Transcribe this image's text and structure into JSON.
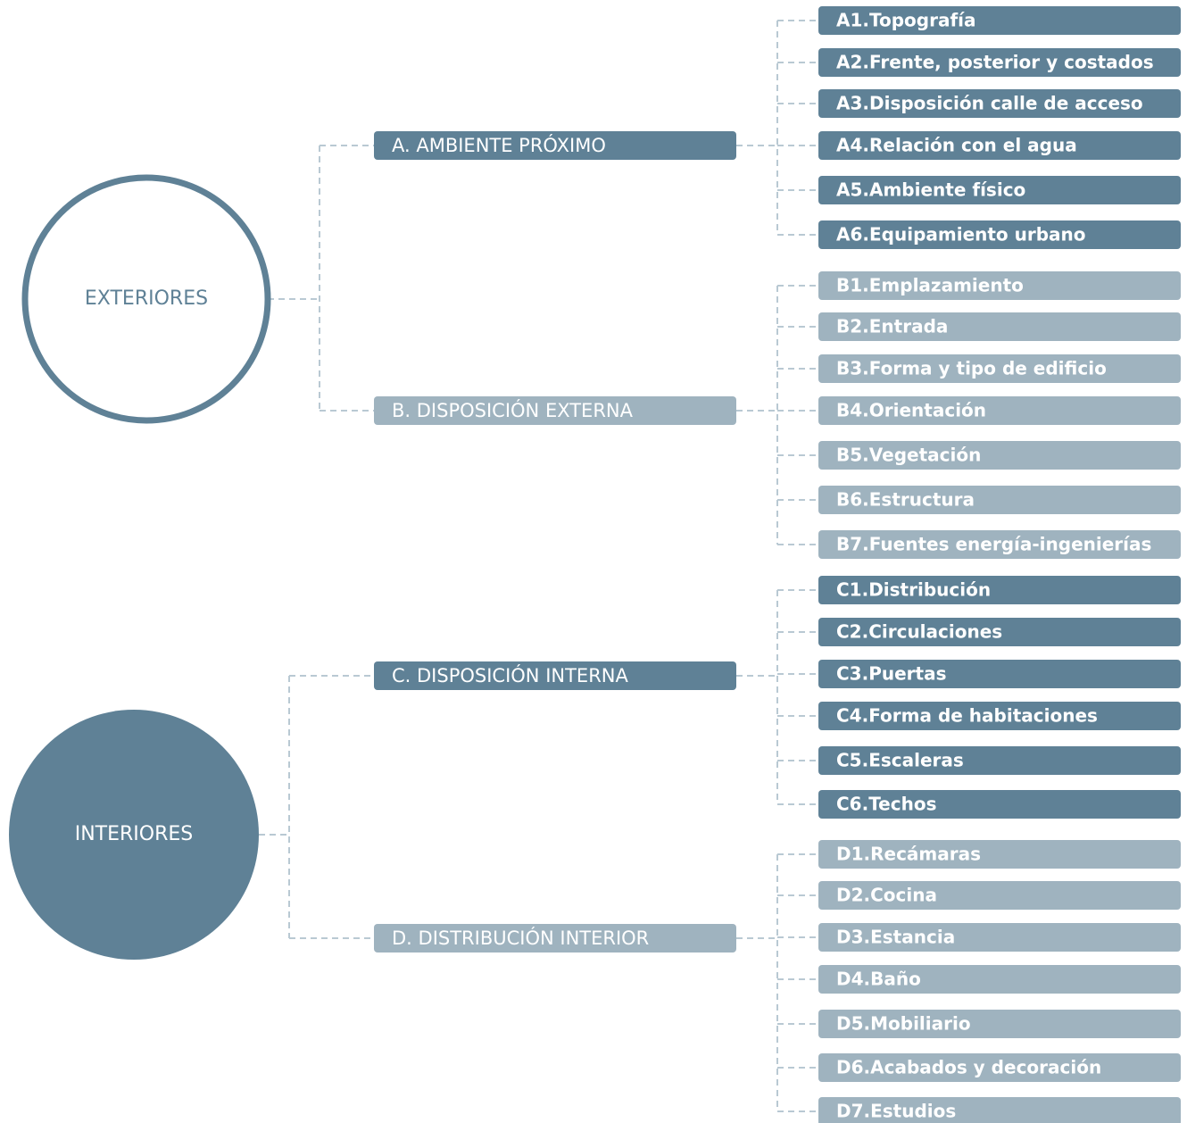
{
  "roots": [
    {
      "label": "EXTERIORES",
      "groups": [
        {
          "label": "A. AMBIENTE PRÓXIMO",
          "items": [
            "A1.Topografía",
            "A2.Frente, posterior y costados",
            "A3.Disposición calle de acceso",
            "A4.Relación con el agua",
            "A5.Ambiente físico",
            "A6.Equipamiento urbano"
          ]
        },
        {
          "label": "B. DISPOSICIÓN EXTERNA",
          "items": [
            "B1.Emplazamiento",
            "B2.Entrada",
            "B3.Forma y tipo de edificio",
            "B4.Orientación",
            "B5.Vegetación",
            "B6.Estructura",
            "B7.Fuentes energía-ingenierías"
          ]
        }
      ]
    },
    {
      "label": "INTERIORES",
      "groups": [
        {
          "label": "C. DISPOSICIÓN INTERNA",
          "items": [
            "C1.Distribución",
            "C2.Circulaciones",
            "C3.Puertas",
            "C4.Forma de habitaciones",
            "C5.Escaleras",
            "C6.Techos"
          ]
        },
        {
          "label": "D. DISTRIBUCIÓN INTERIOR",
          "items": [
            "D1.Recámaras",
            "D2.Cocina",
            "D3.Estancia",
            "D4.Baño",
            "D5.Mobiliario",
            "D6.Acabados y decoración",
            "D7.Estudios"
          ]
        }
      ]
    }
  ]
}
